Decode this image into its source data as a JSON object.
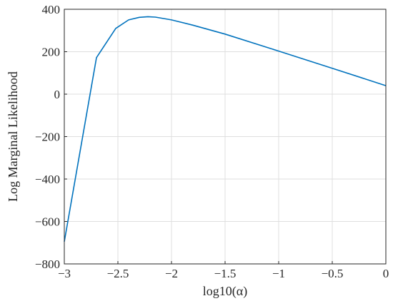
{
  "chart_data": {
    "type": "line",
    "title": "",
    "xlabel": "log10(α)",
    "ylabel": "Log Marginal Likelihood",
    "xlim": [
      -3,
      0
    ],
    "ylim": [
      -800,
      400
    ],
    "x_ticks": [
      -3,
      -2.5,
      -2,
      -1.5,
      -1,
      -0.5,
      0
    ],
    "x_tick_labels": [
      "−3",
      "−2.5",
      "−2",
      "−1.5",
      "−1",
      "−0.5",
      "0"
    ],
    "y_ticks": [
      -800,
      -600,
      -400,
      -200,
      0,
      200,
      400
    ],
    "y_tick_labels": [
      "−800",
      "−600",
      "−400",
      "−200",
      "0",
      "200",
      "400"
    ],
    "grid": true,
    "series": [
      {
        "color": "#0072bd",
        "x": [
          -3.0,
          -2.7,
          -2.52,
          -2.4,
          -2.3,
          -2.22,
          -2.15,
          -2.0,
          -1.8,
          -1.5,
          -1.0,
          -0.5,
          0.0
        ],
        "y": [
          -695,
          172,
          310,
          350,
          362,
          365,
          363,
          350,
          325,
          283,
          203,
          122,
          40
        ]
      }
    ]
  }
}
